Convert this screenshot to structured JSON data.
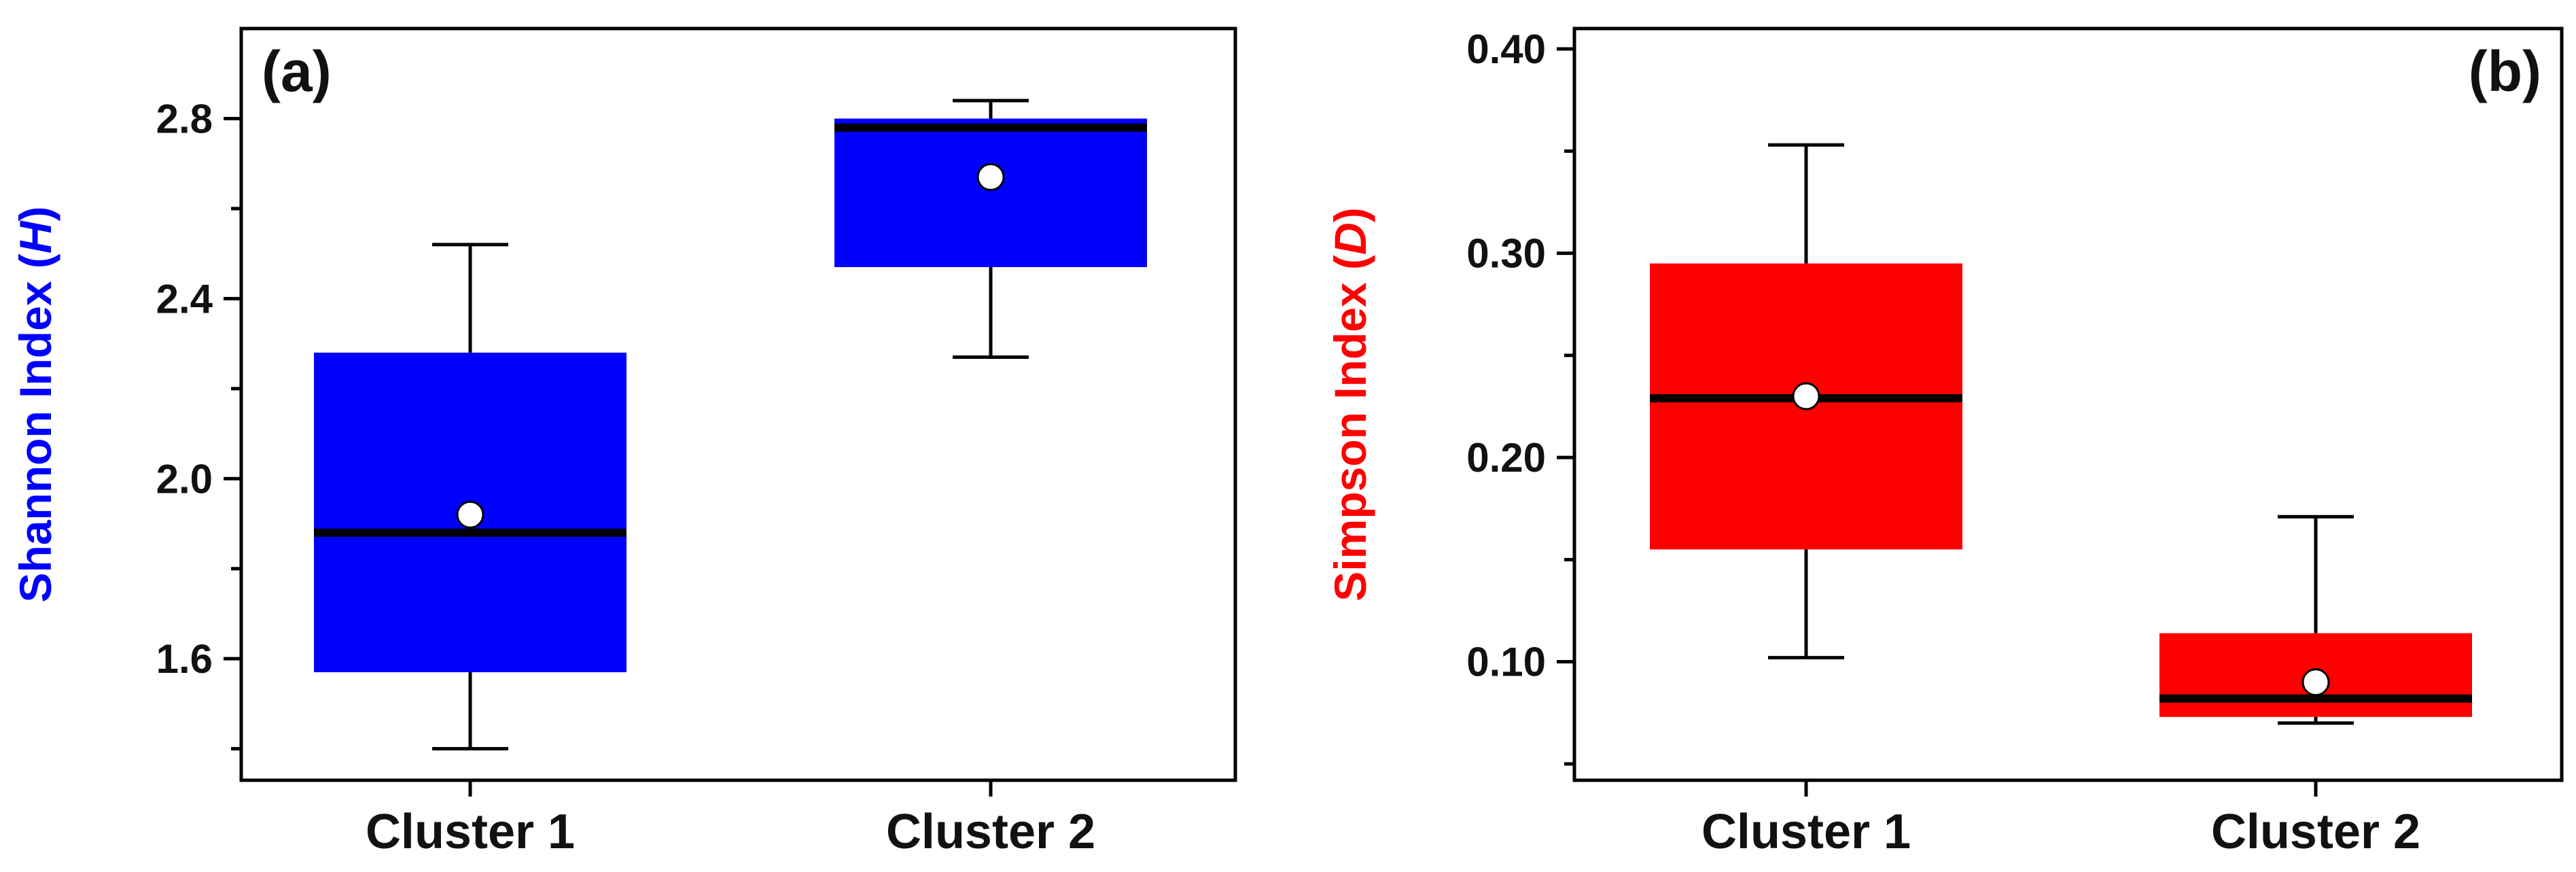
{
  "chart_data": [
    {
      "type": "box",
      "panel_label": "(a)",
      "categories": [
        "Cluster 1",
        "Cluster 2"
      ],
      "ylabel": {
        "text": "Shannon Index (",
        "italic": "H",
        "suffix": ")"
      },
      "ylim": [
        1.33,
        3.0
      ],
      "yticks": [
        1.6,
        2.0,
        2.4,
        2.8
      ],
      "ytick_labels": [
        "1.6",
        "2.0",
        "2.4",
        "2.8"
      ],
      "minor_yticks": [
        1.4,
        1.8,
        2.2,
        2.6
      ],
      "color": "#0000ff",
      "boxes": [
        {
          "category": "Cluster 1",
          "whisker_low": 1.4,
          "q1": 1.57,
          "median": 1.88,
          "mean": 1.92,
          "q3": 2.28,
          "whisker_high": 2.52
        },
        {
          "category": "Cluster 2",
          "whisker_low": 2.27,
          "q1": 2.47,
          "median": 2.78,
          "mean": 2.67,
          "q3": 2.8,
          "whisker_high": 2.84
        }
      ]
    },
    {
      "type": "box",
      "panel_label": "(b)",
      "categories": [
        "Cluster 1",
        "Cluster 2"
      ],
      "ylabel": {
        "text": "Simpson Index (",
        "italic": "D",
        "suffix": ")"
      },
      "ylim": [
        0.042,
        0.41
      ],
      "yticks": [
        0.1,
        0.2,
        0.3,
        0.4
      ],
      "ytick_labels": [
        "0.10",
        "0.20",
        "0.30",
        "0.40"
      ],
      "minor_yticks": [
        0.05,
        0.15,
        0.25,
        0.35
      ],
      "color": "#ff0000",
      "boxes": [
        {
          "category": "Cluster 1",
          "whisker_low": 0.102,
          "q1": 0.155,
          "median": 0.229,
          "mean": 0.23,
          "q3": 0.295,
          "whisker_high": 0.353
        },
        {
          "category": "Cluster 2",
          "whisker_low": 0.07,
          "q1": 0.073,
          "median": 0.082,
          "mean": 0.09,
          "q3": 0.114,
          "whisker_high": 0.171
        }
      ]
    }
  ]
}
